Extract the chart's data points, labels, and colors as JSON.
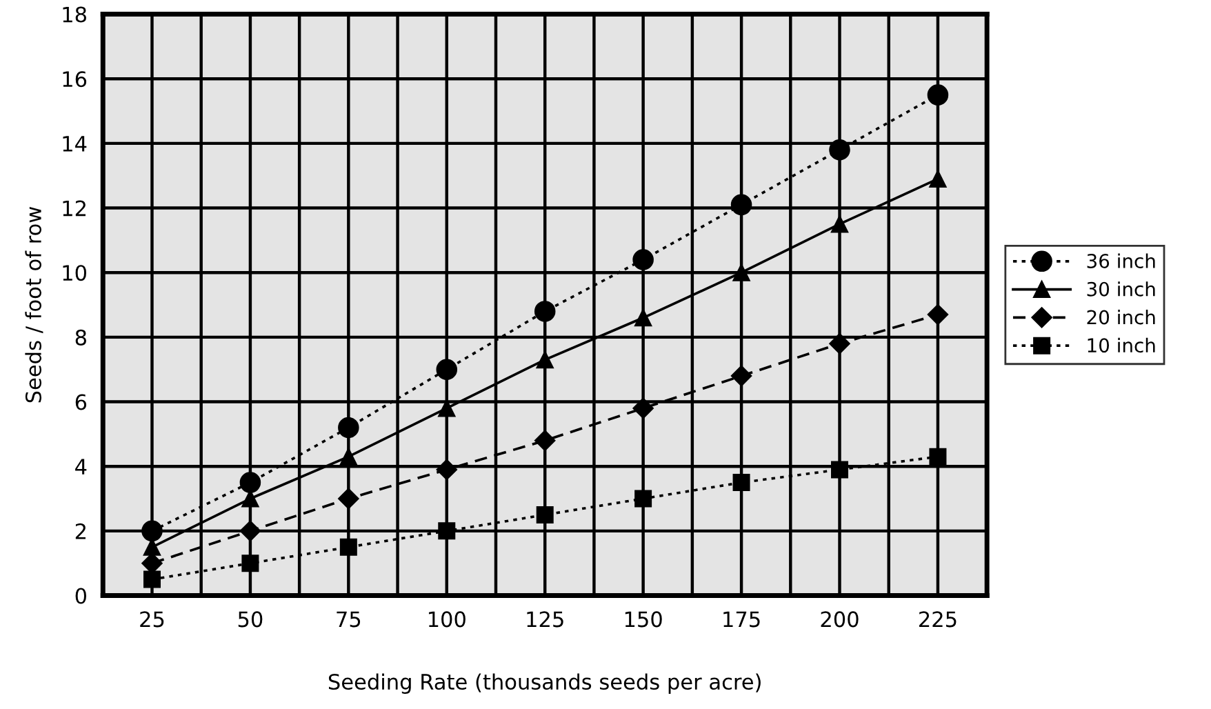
{
  "chart_data": {
    "type": "line",
    "xlabel": "Seeding Rate (thousands seeds per acre)",
    "ylabel": "Seeds / foot of row",
    "categories": [
      "25",
      "50",
      "75",
      "100",
      "125",
      "150",
      "175",
      "200",
      "225"
    ],
    "ylim": [
      0,
      18
    ],
    "yticks": [
      0,
      2,
      4,
      6,
      8,
      10,
      12,
      14,
      16,
      18
    ],
    "grid": true,
    "legend": "right",
    "series": [
      {
        "name": "36 inch",
        "color": "#000000",
        "marker": "circle",
        "line_style": "dotted",
        "values": [
          2.0,
          3.5,
          5.2,
          7.0,
          8.8,
          10.4,
          12.1,
          13.8,
          15.5
        ]
      },
      {
        "name": "30 inch",
        "color": "#000000",
        "marker": "triangle",
        "line_style": "solid",
        "values": [
          1.5,
          3.0,
          4.3,
          5.8,
          7.3,
          8.6,
          10.0,
          11.5,
          12.9
        ]
      },
      {
        "name": "20 inch",
        "color": "#000000",
        "marker": "diamond",
        "line_style": "dashed",
        "values": [
          1.0,
          2.0,
          3.0,
          3.9,
          4.8,
          5.8,
          6.8,
          7.8,
          8.7
        ]
      },
      {
        "name": "10 inch",
        "color": "#000000",
        "marker": "square",
        "line_style": "dotted",
        "values": [
          0.5,
          1.0,
          1.5,
          2.0,
          2.5,
          3.0,
          3.5,
          3.9,
          4.3
        ]
      }
    ]
  }
}
